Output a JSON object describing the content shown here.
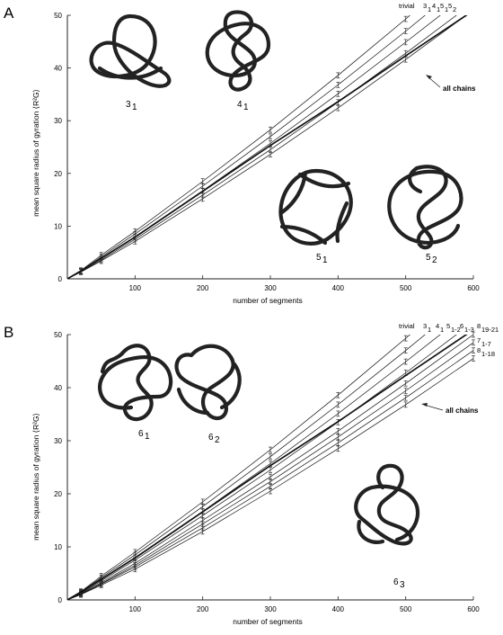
{
  "panels": [
    {
      "label": "A",
      "knot_labels": [
        [
          "3",
          "1"
        ],
        [
          "4",
          "1"
        ],
        [
          "5",
          "1"
        ],
        [
          "5",
          "2"
        ]
      ],
      "all_chains_label": "all chains"
    },
    {
      "label": "B",
      "knot_labels": [
        [
          "6",
          "1"
        ],
        [
          "6",
          "2"
        ],
        [
          "6",
          "3"
        ]
      ],
      "all_chains_label": "all chains"
    }
  ],
  "chart_data": [
    {
      "type": "line",
      "xlabel": "number of segments",
      "ylabel": "mean square radius of gyration ⟨R²G⟩",
      "xlim": [
        0,
        600
      ],
      "ylim": [
        0,
        50
      ],
      "xticks": [
        100,
        200,
        300,
        400,
        500,
        600
      ],
      "yticks": [
        0,
        10,
        20,
        30,
        40,
        50
      ],
      "x": [
        0,
        20,
        50,
        100,
        200,
        300,
        400,
        500,
        600
      ],
      "series": [
        {
          "name": "trivial",
          "sub": "",
          "values": [
            0,
            1.6,
            4.5,
            9.0,
            18.5,
            28.3,
            38.6,
            49.3,
            60.3
          ],
          "err": 0.5
        },
        {
          "name": "3",
          "sub": "1",
          "values": [
            0,
            1.5,
            4.2,
            8.5,
            17.6,
            27.0,
            36.8,
            47.0,
            57.5
          ],
          "err": 0.5
        },
        {
          "name": "4",
          "sub": "1",
          "values": [
            0,
            1.4,
            3.9,
            8.0,
            16.7,
            25.7,
            35.1,
            44.9,
            54.9
          ],
          "err": 0.5
        },
        {
          "name": "5",
          "sub": "1",
          "values": [
            0,
            1.3,
            3.6,
            7.5,
            15.9,
            24.5,
            33.5,
            42.8,
            52.4
          ],
          "err": 0.5
        },
        {
          "name": "5",
          "sub": "2",
          "values": [
            0,
            1.3,
            3.4,
            7.1,
            15.2,
            23.6,
            32.4,
            41.6,
            51.0
          ],
          "err": 0.5
        },
        {
          "name": "all chains",
          "sub": "",
          "values": [
            0,
            1.5,
            3.9,
            7.9,
            16.6,
            25.3,
            33.6,
            42.3,
            50.9
          ],
          "bold": true
        }
      ],
      "series_header": [
        "trivial",
        "3",
        "1",
        "4",
        "1",
        "5",
        "1",
        "5",
        "2"
      ],
      "annotation": "all chains"
    },
    {
      "type": "line",
      "xlabel": "number of segments",
      "ylabel": "mean square radius of gyration ⟨R²G⟩",
      "xlim": [
        0,
        600
      ],
      "ylim": [
        0,
        50
      ],
      "xticks": [
        100,
        200,
        300,
        400,
        500,
        600
      ],
      "yticks": [
        0,
        10,
        20,
        30,
        40,
        50
      ],
      "x": [
        0,
        20,
        50,
        100,
        200,
        300,
        400,
        500,
        600
      ],
      "series": [
        {
          "name": "trivial",
          "sub": "",
          "values": [
            0,
            1.6,
            4.5,
            9.0,
            18.5,
            28.3,
            38.6,
            49.3,
            60.3
          ],
          "err": 0.5
        },
        {
          "name": "3",
          "sub": "1",
          "values": [
            0,
            1.5,
            4.2,
            8.5,
            17.6,
            27.0,
            36.8,
            47.0,
            57.5
          ],
          "err": 0.5
        },
        {
          "name": "4",
          "sub": "1",
          "values": [
            0,
            1.4,
            3.9,
            8.0,
            16.7,
            25.7,
            35.1,
            44.9,
            54.9
          ],
          "err": 0.5
        },
        {
          "name": "5",
          "sub": "1-2",
          "values": [
            0,
            1.3,
            3.6,
            7.5,
            15.9,
            24.5,
            33.5,
            42.8,
            52.4
          ],
          "err": 0.5
        },
        {
          "name": "6",
          "sub": "1-3",
          "values": [
            0,
            1.2,
            3.3,
            6.9,
            15.0,
            23.2,
            31.8,
            40.8,
            50.0
          ],
          "err": 0.5
        },
        {
          "name": "8",
          "sub": "19-21",
          "values": [
            0,
            1.1,
            3.1,
            6.5,
            14.3,
            22.3,
            30.7,
            39.4,
            48.5
          ],
          "err": 0.5
        },
        {
          "name": "7",
          "sub": "1-7",
          "values": [
            0,
            1.1,
            3.0,
            6.2,
            13.6,
            21.4,
            29.6,
            38.1,
            47.0
          ],
          "err": 0.5
        },
        {
          "name": "8",
          "sub": "1-18",
          "values": [
            0,
            1.0,
            2.8,
            5.8,
            12.9,
            20.5,
            28.5,
            36.8,
            45.5
          ],
          "err": 0.5
        },
        {
          "name": "all chains",
          "sub": "",
          "values": [
            0,
            1.5,
            3.9,
            7.9,
            16.6,
            25.3,
            33.6,
            42.3,
            50.9
          ],
          "bold": true
        }
      ],
      "series_header": [
        "trivial",
        "3",
        "1",
        "4",
        "1",
        "5",
        "1-2",
        "6",
        "1-3",
        "8",
        "19-21",
        "7",
        "1-7",
        "8",
        "1-18"
      ],
      "annotation": "all chains"
    }
  ]
}
